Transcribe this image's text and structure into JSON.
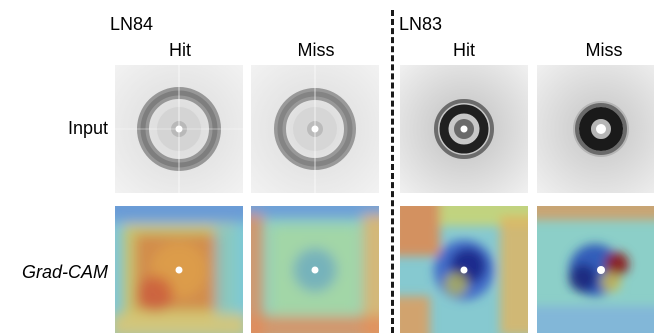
{
  "groups": [
    {
      "label": "LN84"
    },
    {
      "label": "LN83"
    }
  ],
  "columns": [
    "Hit",
    "Miss",
    "Hit",
    "Miss"
  ],
  "rows": [
    "Input",
    "Grad-CAM"
  ],
  "colors": {
    "background": "#ffffff",
    "divider": "#1a1a1a",
    "input_ring_light": "#7f7f7f",
    "input_ring_dark": "#1e1e1e",
    "cam_low": "#1f3ea8",
    "cam_mid": "#6fd0b8",
    "cam_high": "#c94a2a"
  }
}
